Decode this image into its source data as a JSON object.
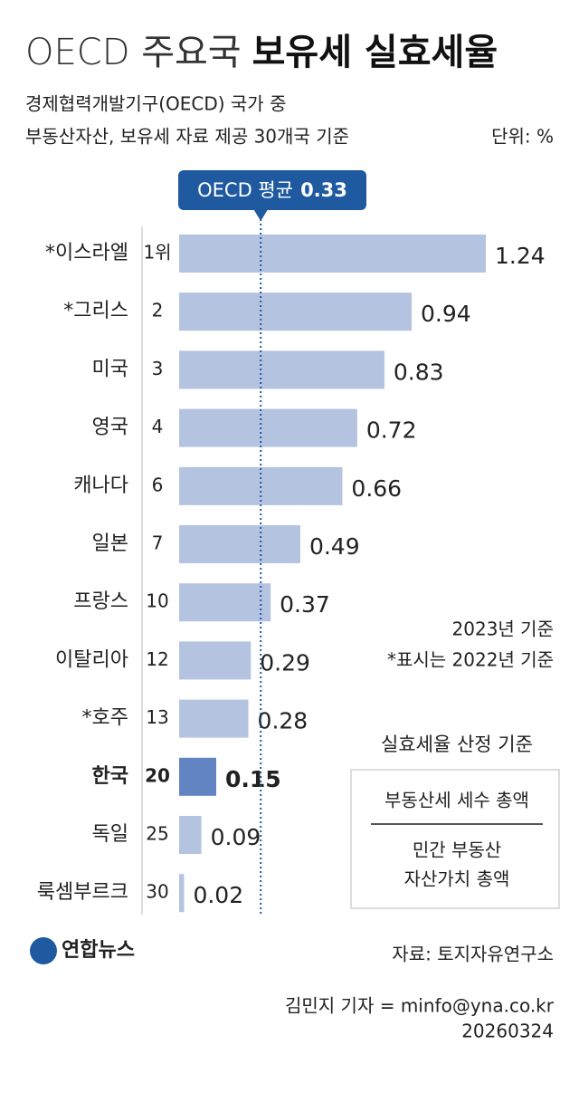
{
  "chart_data": {
    "type": "hbar",
    "title": {
      "light": "OECD 주요국",
      "bold": "보유세 실효세율"
    },
    "subtitle": [
      "경제협력개발기구(OECD) 국가 중",
      "부동산자산, 보유세 자료 제공 30개국 기준"
    ],
    "unit": "단위: %",
    "categories": [
      "*이스라엘",
      "*그리스",
      "미국",
      "영국",
      "캐나다",
      "일본",
      "프랑스",
      "이탈리아",
      "*호주",
      "한국",
      "독일",
      "룩셈부르크"
    ],
    "ranks": [
      "1위",
      "2",
      "3",
      "4",
      "6",
      "7",
      "10",
      "12",
      "13",
      "20",
      "25",
      "30"
    ],
    "values": [
      1.24,
      0.94,
      0.83,
      0.72,
      0.66,
      0.49,
      0.37,
      0.29,
      0.28,
      0.15,
      0.09,
      0.02
    ],
    "colors": [
      "#b4c3df",
      "#b4c3df",
      "#b4c3df",
      "#b4c3df",
      "#b4c3df",
      "#b4c3df",
      "#b4c3df",
      "#b4c3df",
      "#b4c3df",
      "#6384c3",
      "#b4c3df",
      "#b4c3df"
    ],
    "reference": {
      "label": "OECD 평균",
      "value": 0.33,
      "color": "#1f5aa0"
    },
    "notes": [
      "2023년 기준",
      "*표시는 2022년 기준"
    ],
    "formula": {
      "title": "실효세율 산정 기준",
      "numerator": "부동산세 세수 총액",
      "denominator": [
        "민간 부동산",
        "자산가치 총액"
      ]
    },
    "logo": "연합뉴스",
    "source": "자료: 토지자유연구소",
    "credit": "김민지 기자 = minfo@yna.co.kr",
    "date": "20260324"
  }
}
